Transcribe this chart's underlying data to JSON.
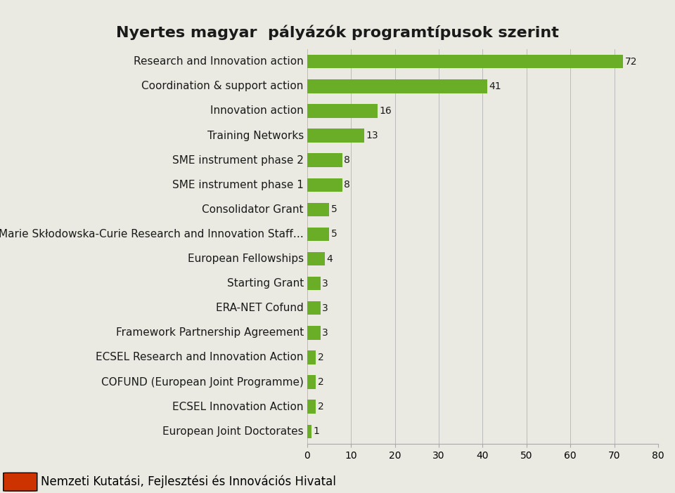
{
  "title": "Nyertes magyar  pályázók programtípusok szerint",
  "categories": [
    "European Joint Doctorates",
    "ECSEL Innovation Action",
    "COFUND (European Joint Programme)",
    "ECSEL Research and Innovation Action",
    "Framework Partnership Agreement",
    "ERA-NET Cofund",
    "Starting Grant",
    "European Fellowships",
    "Marie Skłodowska-Curie Research and Innovation Staff…",
    "Consolidator Grant",
    "SME instrument phase 1",
    "SME instrument phase 2",
    "Training Networks",
    "Innovation action",
    "Coordination & support action",
    "Research and Innovation action"
  ],
  "values": [
    1,
    2,
    2,
    2,
    3,
    3,
    3,
    4,
    5,
    5,
    8,
    8,
    13,
    16,
    41,
    72
  ],
  "bar_color": "#6AAE28",
  "background_color": "#EAEAE2",
  "text_color": "#1a1a1a",
  "title_fontsize": 16,
  "label_fontsize": 11,
  "value_fontsize": 10,
  "tick_fontsize": 10,
  "xlim": [
    0,
    80
  ],
  "xticks": [
    0,
    10,
    20,
    30,
    40,
    50,
    60,
    70,
    80
  ],
  "footer_text": "Nemzeti Kutatási, Fejlesztési és Innovációs Hivatal",
  "footer_bar_color": "#6AAE28",
  "footer_text_fontsize": 12
}
